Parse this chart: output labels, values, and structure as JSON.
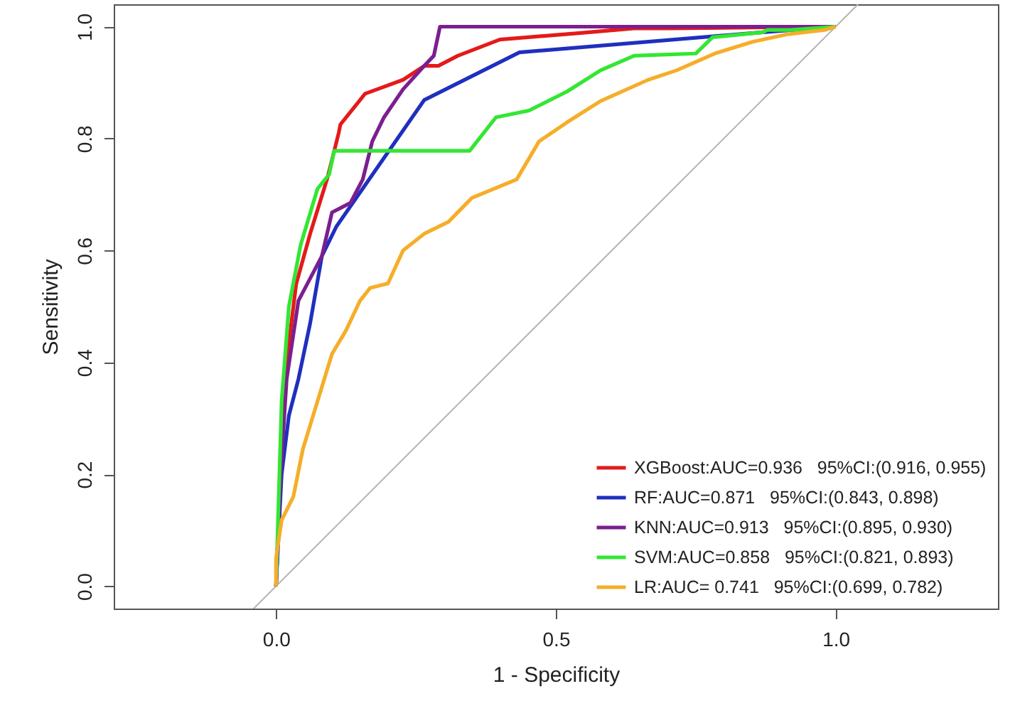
{
  "chart_data": {
    "type": "line",
    "xlabel": "1 - Specificity",
    "ylabel": "Sensitivity",
    "xlim": [
      -0.29,
      1.29
    ],
    "ylim": [
      -0.04,
      1.04
    ],
    "xticks": [
      {
        "value": 0,
        "label": "0.0"
      },
      0.5,
      {
        "value": 1,
        "label": "1.0"
      }
    ],
    "yticks": [
      {
        "value": 0,
        "label": "0.0"
      },
      0.2,
      0.4,
      0.6,
      0.8,
      {
        "value": 1,
        "label": "1.0"
      }
    ],
    "legend": "bottom right",
    "series": [
      {
        "type": "line",
        "color": "#b4b4b4",
        "x": [
          -0.04,
          1.04
        ],
        "values": [
          -0.04,
          1.04
        ]
      },
      {
        "name": "XGBoost:AUC=0.936   95%CI:(0.916, 0.955)",
        "color": "#e41a1a",
        "x": [
          0,
          0.008,
          0.02,
          0.036,
          0.061,
          0.092,
          0.112,
          0.115,
          0.159,
          0.227,
          0.265,
          0.29,
          0.325,
          0.4,
          0.537,
          0.64,
          0.703,
          1.0
        ],
        "values": [
          0,
          0.2,
          0.41,
          0.54,
          0.63,
          0.73,
          0.81,
          0.825,
          0.88,
          0.905,
          0.93,
          0.93,
          0.948,
          0.977,
          0.988,
          0.997,
          0.997,
          1.0
        ]
      },
      {
        "name": "RF:AUC=0.871   95%CI:(0.843, 0.898)",
        "color": "#1f2fbf",
        "x": [
          0,
          0.01,
          0.023,
          0.04,
          0.061,
          0.082,
          0.108,
          0.265,
          0.435,
          0.87,
          1.0
        ],
        "values": [
          0,
          0.2,
          0.305,
          0.37,
          0.47,
          0.59,
          0.643,
          0.869,
          0.954,
          0.99,
          1.0
        ]
      },
      {
        "name": "KNN:AUC=0.913   95%CI:(0.895, 0.930)",
        "color": "#7b1f8f",
        "x": [
          0,
          0.008,
          0.019,
          0.04,
          0.082,
          0.1,
          0.133,
          0.155,
          0.172,
          0.193,
          0.227,
          0.265,
          0.282,
          0.293,
          1.0
        ],
        "values": [
          0,
          0.2,
          0.37,
          0.51,
          0.59,
          0.668,
          0.685,
          0.727,
          0.795,
          0.838,
          0.888,
          0.93,
          0.948,
          1.0,
          1.0
        ]
      },
      {
        "name": "SVM:AUC=0.858   95%CI:(0.821, 0.893)",
        "color": "#33e633",
        "x": [
          0,
          0.01,
          0.023,
          0.044,
          0.074,
          0.095,
          0.104,
          0.346,
          0.393,
          0.452,
          0.52,
          0.58,
          0.64,
          0.75,
          0.78,
          0.87,
          0.878,
          0.92,
          1.0
        ],
        "values": [
          0,
          0.33,
          0.5,
          0.61,
          0.71,
          0.736,
          0.778,
          0.778,
          0.838,
          0.85,
          0.884,
          0.922,
          0.948,
          0.952,
          0.981,
          0.99,
          0.994,
          0.994,
          1.0
        ]
      },
      {
        "name": "LR:AUC= 0.741   95%CI:(0.699, 0.782)",
        "color": "#f5ae2a",
        "x": [
          0,
          0.0,
          0.01,
          0.031,
          0.048,
          0.074,
          0.1,
          0.125,
          0.15,
          0.168,
          0.2,
          0.227,
          0.265,
          0.308,
          0.35,
          0.43,
          0.47,
          0.52,
          0.58,
          0.665,
          0.716,
          0.784,
          0.852,
          0.912,
          0.98,
          1.0
        ],
        "values": [
          0,
          0.05,
          0.118,
          0.16,
          0.245,
          0.33,
          0.415,
          0.457,
          0.51,
          0.533,
          0.541,
          0.6,
          0.63,
          0.651,
          0.694,
          0.727,
          0.795,
          0.829,
          0.867,
          0.905,
          0.922,
          0.952,
          0.973,
          0.986,
          0.994,
          1.0
        ]
      }
    ]
  }
}
